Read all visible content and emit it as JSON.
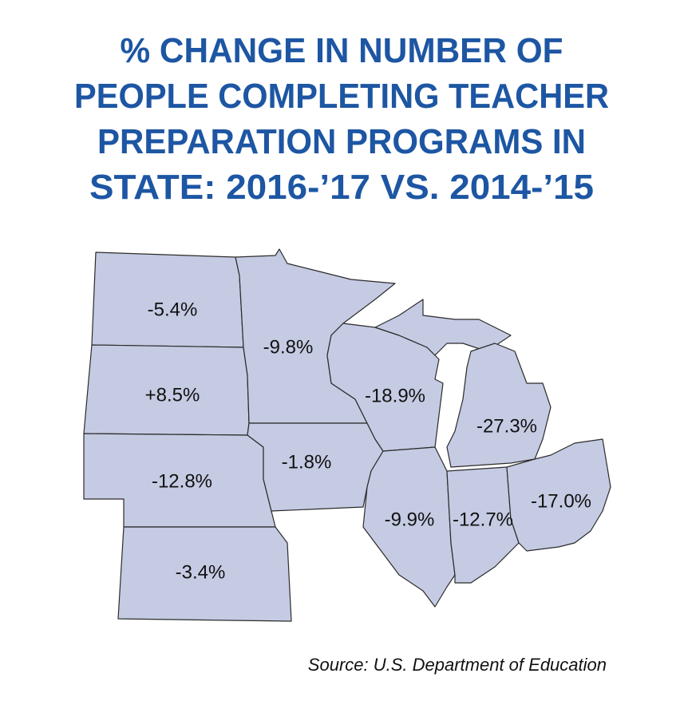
{
  "title": [
    "% CHANGE IN NUMBER OF",
    "PEOPLE COMPLETING TEACHER",
    "PREPARATION PROGRAMS IN",
    "STATE: 2016-’17 VS. 2014-’15"
  ],
  "regions": [
    {
      "label": "-5.4%"
    },
    {
      "label": "+8.5%"
    },
    {
      "label": "-12.8%"
    },
    {
      "label": "-3.4%"
    },
    {
      "label": "-9.8%"
    },
    {
      "label": "-1.8%"
    },
    {
      "label": "-18.9%"
    },
    {
      "label": "-27.3%"
    },
    {
      "label": "-9.9%"
    },
    {
      "label": "-12.7%"
    },
    {
      "label": "-17.0%"
    }
  ],
  "source": "Source: U.S. Department of Education"
}
